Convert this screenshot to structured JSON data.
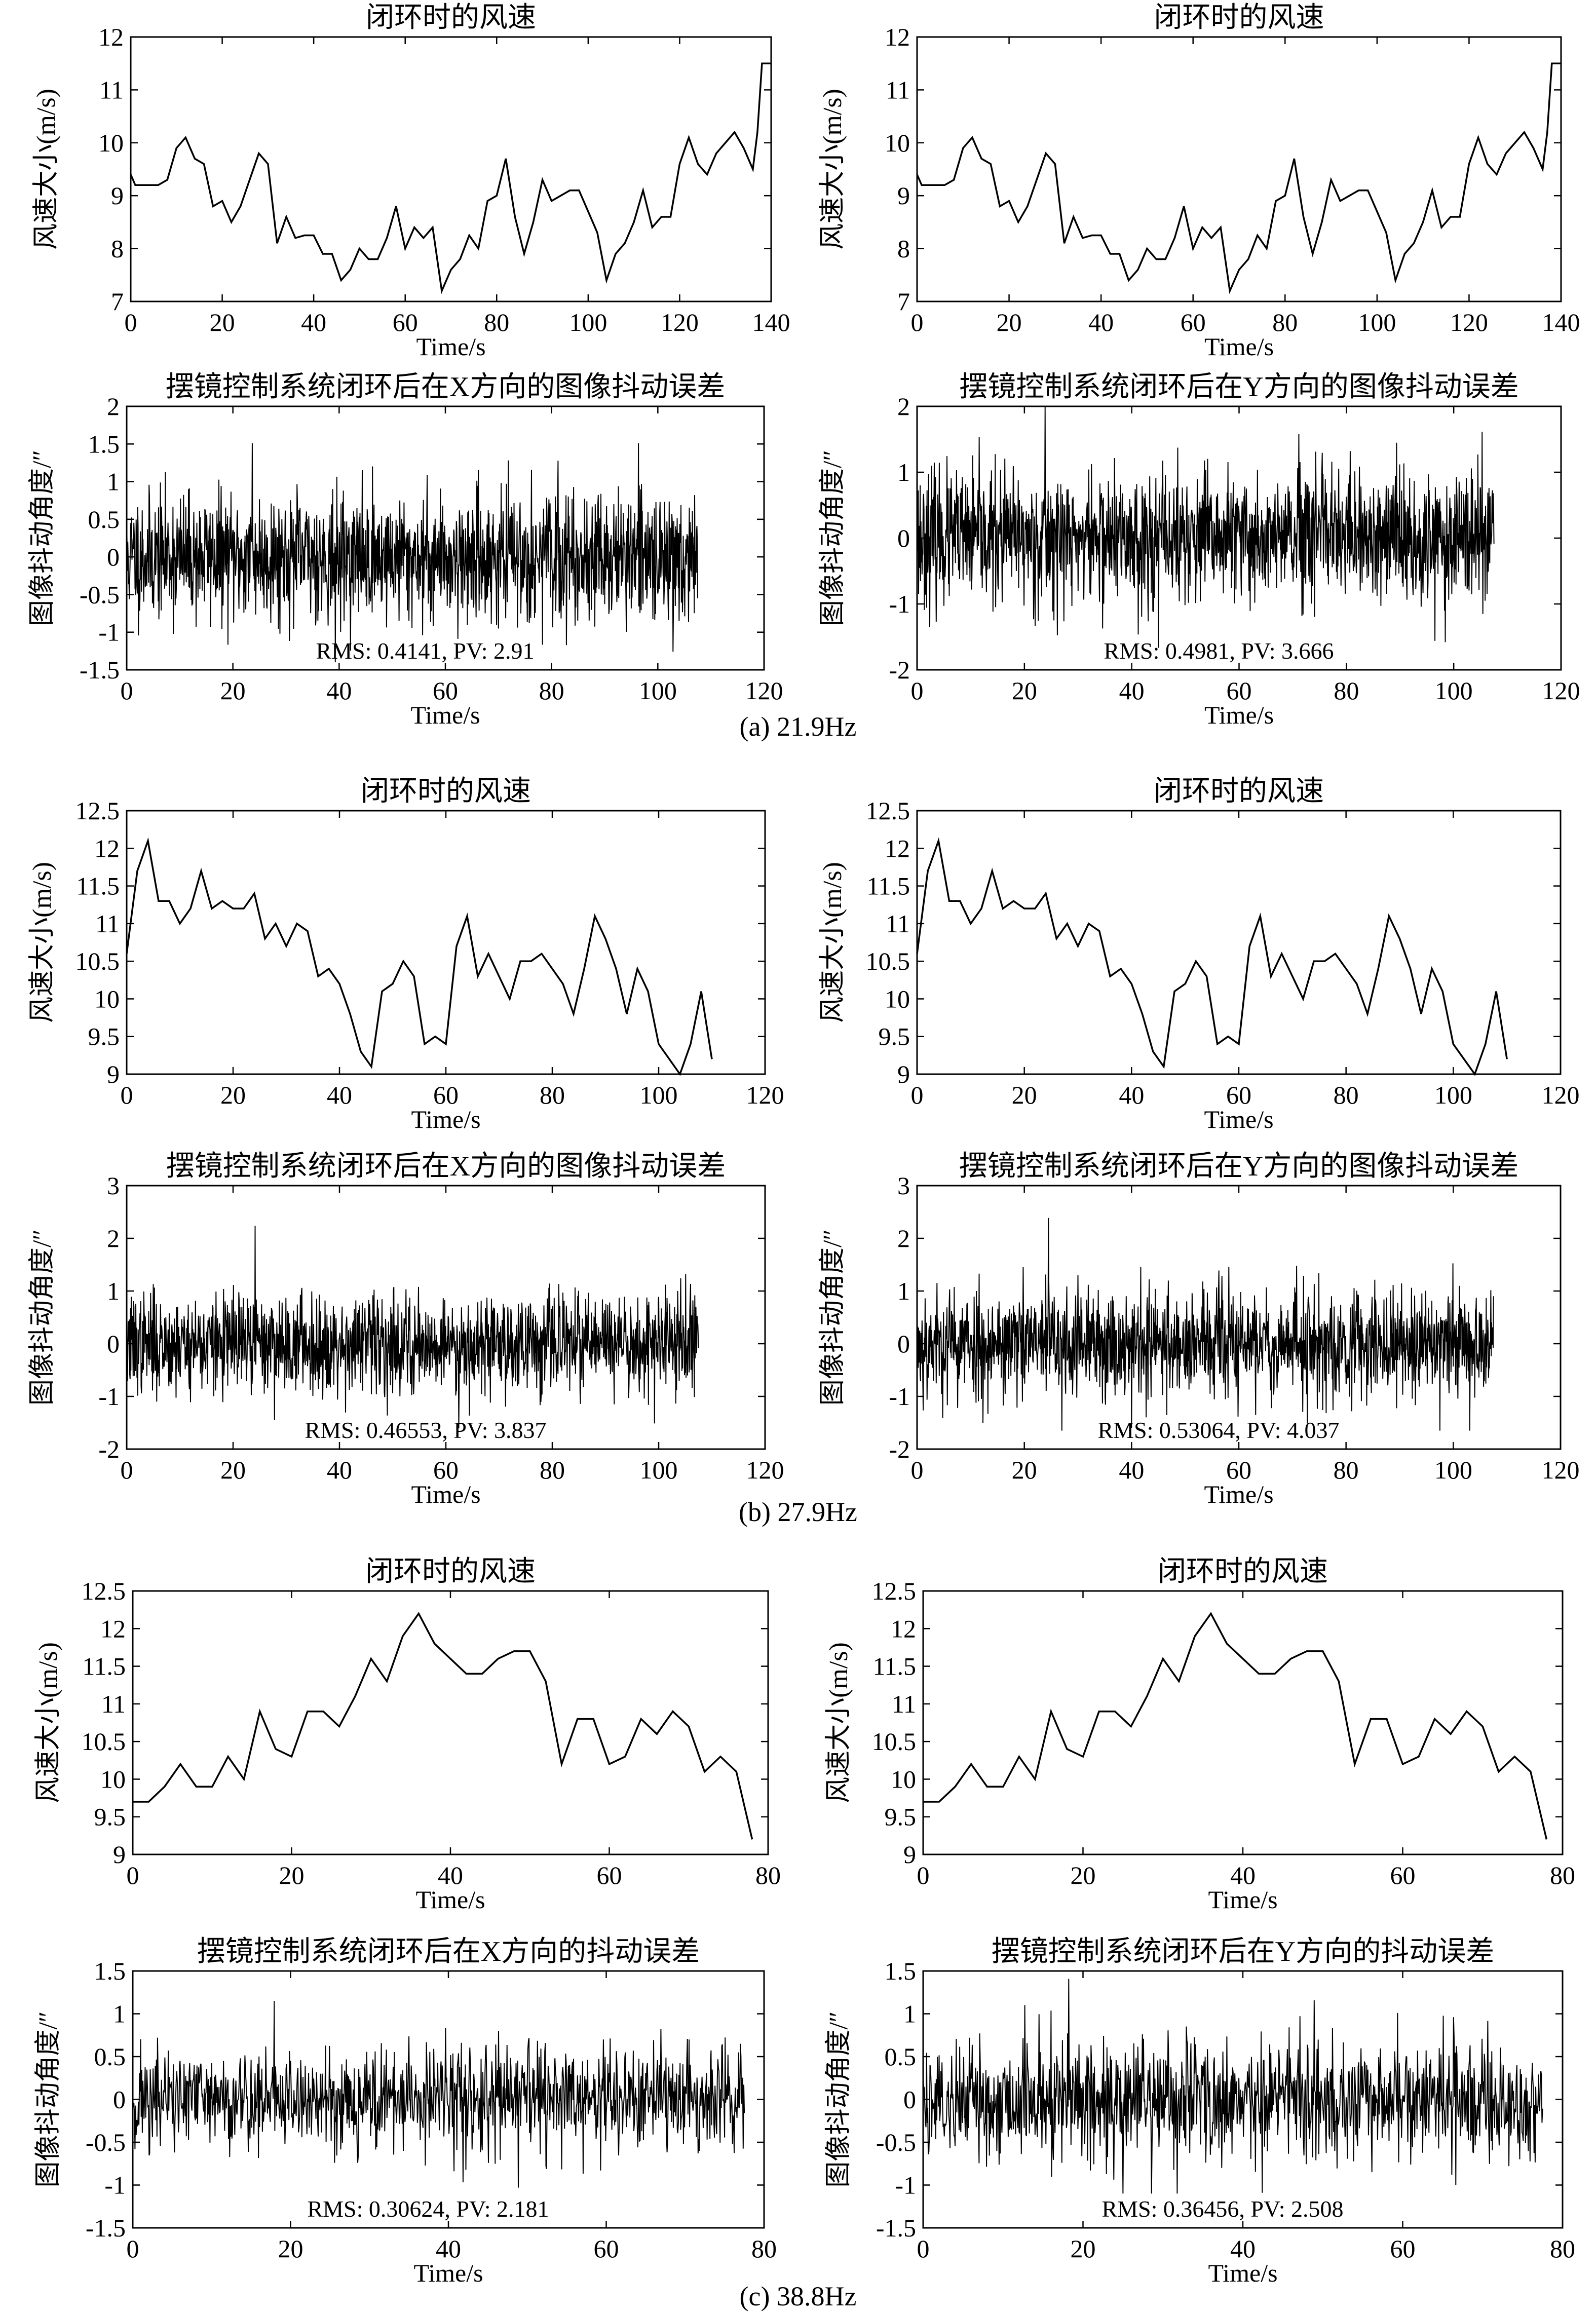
{
  "captions": [
    "(a) 21.9Hz",
    "(b) 27.9Hz",
    "(c) 38.8Hz"
  ],
  "chart_data": [
    {
      "id": "a-wind-left",
      "type": "line",
      "title": "闭环时的风速",
      "xlabel": "Time/s",
      "ylabel": "风速大小(m/s)",
      "xlim": [
        0,
        140
      ],
      "ylim": [
        7,
        12
      ],
      "xticks": [
        0,
        20,
        40,
        60,
        80,
        100,
        120,
        140
      ],
      "yticks": [
        7,
        8,
        9,
        10,
        11,
        12
      ],
      "x": [
        0,
        1,
        2,
        4,
        6,
        8,
        10,
        12,
        14,
        16,
        18,
        20,
        22,
        24,
        26,
        28,
        30,
        32,
        34,
        36,
        38,
        40,
        42,
        44,
        46,
        48,
        50,
        52,
        54,
        56,
        58,
        60,
        62,
        64,
        66,
        68,
        70,
        72,
        74,
        76,
        78,
        80,
        82,
        84,
        86,
        88,
        90,
        92,
        94,
        96,
        98,
        100,
        102,
        104,
        106,
        108,
        110,
        112,
        114,
        116,
        118,
        120,
        122,
        124,
        126,
        128,
        130,
        132,
        134,
        136,
        137,
        138,
        139,
        140
      ],
      "y": [
        9.4,
        9.2,
        9.2,
        9.2,
        9.2,
        9.3,
        9.9,
        10.1,
        9.7,
        9.6,
        8.8,
        8.9,
        8.5,
        8.8,
        9.3,
        9.8,
        9.6,
        8.1,
        8.6,
        8.2,
        8.25,
        8.25,
        7.9,
        7.9,
        7.4,
        7.6,
        8.0,
        7.8,
        7.8,
        8.2,
        8.8,
        8.0,
        8.4,
        8.2,
        8.4,
        7.2,
        7.6,
        7.8,
        8.25,
        8.0,
        8.9,
        9.0,
        9.7,
        8.6,
        7.9,
        8.5,
        9.3,
        8.9,
        9.0,
        9.1,
        9.1,
        8.7,
        8.3,
        7.4,
        7.9,
        8.1,
        8.5,
        9.1,
        8.4,
        8.6,
        8.6,
        9.6,
        10.1,
        9.6,
        9.4,
        9.8,
        10.0,
        10.2,
        9.9,
        9.5,
        10.2,
        11.5,
        11.5,
        11.5
      ]
    },
    {
      "id": "a-wind-right",
      "type": "line",
      "title": "闭环时的风速",
      "xlabel": "Time/s",
      "ylabel": "风速大小(m/s)",
      "xlim": [
        0,
        140
      ],
      "ylim": [
        7,
        12
      ],
      "xticks": [
        0,
        20,
        40,
        60,
        80,
        100,
        120,
        140
      ],
      "yticks": [
        7,
        8,
        9,
        10,
        11,
        12
      ],
      "x": [
        0,
        1,
        2,
        4,
        6,
        8,
        10,
        12,
        14,
        16,
        18,
        20,
        22,
        24,
        26,
        28,
        30,
        32,
        34,
        36,
        38,
        40,
        42,
        44,
        46,
        48,
        50,
        52,
        54,
        56,
        58,
        60,
        62,
        64,
        66,
        68,
        70,
        72,
        74,
        76,
        78,
        80,
        82,
        84,
        86,
        88,
        90,
        92,
        94,
        96,
        98,
        100,
        102,
        104,
        106,
        108,
        110,
        112,
        114,
        116,
        118,
        120,
        122,
        124,
        126,
        128,
        130,
        132,
        134,
        136,
        137,
        138,
        139,
        140
      ],
      "y": [
        9.4,
        9.2,
        9.2,
        9.2,
        9.2,
        9.3,
        9.9,
        10.1,
        9.7,
        9.6,
        8.8,
        8.9,
        8.5,
        8.8,
        9.3,
        9.8,
        9.6,
        8.1,
        8.6,
        8.2,
        8.25,
        8.25,
        7.9,
        7.9,
        7.4,
        7.6,
        8.0,
        7.8,
        7.8,
        8.2,
        8.8,
        8.0,
        8.4,
        8.2,
        8.4,
        7.2,
        7.6,
        7.8,
        8.25,
        8.0,
        8.9,
        9.0,
        9.7,
        8.6,
        7.9,
        8.5,
        9.3,
        8.9,
        9.0,
        9.1,
        9.1,
        8.7,
        8.3,
        7.4,
        7.9,
        8.1,
        8.5,
        9.1,
        8.4,
        8.6,
        8.6,
        9.6,
        10.1,
        9.6,
        9.4,
        9.8,
        10.0,
        10.2,
        9.9,
        9.5,
        10.2,
        11.5,
        11.5,
        11.5
      ]
    },
    {
      "id": "a-jitter-x",
      "type": "line",
      "title": "摆镜控制系统闭环后在X方向的图像抖动误差",
      "xlabel": "Time/s",
      "ylabel": "图像抖动角度/″",
      "xlim": [
        0,
        120
      ],
      "ylim": [
        -1.5,
        2
      ],
      "xticks": [
        0,
        20,
        40,
        60,
        80,
        100,
        120
      ],
      "yticks": [
        -1.5,
        -1,
        -0.5,
        0,
        0.5,
        1,
        1.5,
        2
      ],
      "duration": 107.5,
      "rms": 0.4141,
      "amplitude_range": [
        -1.4,
        1.51
      ],
      "seed": 11,
      "annotation": "RMS: 0.4141, PV: 2.91"
    },
    {
      "id": "a-jitter-y",
      "type": "line",
      "title": "摆镜控制系统闭环后在Y方向的图像抖动误差",
      "xlabel": "Time/s",
      "ylabel": "图像抖动角度/″",
      "xlim": [
        0,
        120
      ],
      "ylim": [
        -2,
        2
      ],
      "xticks": [
        0,
        20,
        40,
        60,
        80,
        100,
        120
      ],
      "yticks": [
        -2,
        -1,
        0,
        1,
        2
      ],
      "duration": 107.5,
      "rms": 0.4981,
      "amplitude_range": [
        -1.666,
        2.0
      ],
      "seed": 23,
      "annotation": "RMS: 0.4981, PV: 3.666"
    },
    {
      "id": "b-wind-left",
      "type": "line",
      "title": "闭环时的风速",
      "xlabel": "Time/s",
      "ylabel": "风速大小(m/s)",
      "xlim": [
        0,
        120
      ],
      "ylim": [
        9,
        12.5
      ],
      "xticks": [
        0,
        20,
        40,
        60,
        80,
        100,
        120
      ],
      "yticks": [
        9,
        9.5,
        10,
        10.5,
        11,
        11.5,
        12,
        12.5
      ],
      "x": [
        0,
        2,
        4,
        6,
        8,
        10,
        12,
        14,
        16,
        18,
        20,
        22,
        24,
        26,
        28,
        30,
        32,
        34,
        36,
        38,
        40,
        42,
        44,
        46,
        48,
        50,
        52,
        54,
        56,
        58,
        60,
        62,
        64,
        66,
        68,
        70,
        72,
        74,
        76,
        78,
        80,
        82,
        84,
        86,
        88,
        90,
        92,
        94,
        96,
        98,
        100,
        102,
        104,
        106,
        108,
        110
      ],
      "y": [
        10.6,
        11.7,
        12.1,
        11.3,
        11.3,
        11.0,
        11.2,
        11.7,
        11.2,
        11.3,
        11.2,
        11.2,
        11.4,
        10.8,
        11.0,
        10.7,
        11.0,
        10.9,
        10.3,
        10.4,
        10.2,
        9.8,
        9.3,
        9.1,
        10.1,
        10.2,
        10.5,
        10.3,
        9.4,
        9.5,
        9.4,
        10.7,
        11.1,
        10.3,
        10.6,
        10.3,
        10.0,
        10.5,
        10.5,
        10.6,
        10.4,
        10.2,
        9.8,
        10.4,
        11.1,
        10.8,
        10.4,
        9.8,
        10.4,
        10.1,
        9.4,
        9.2,
        9.0,
        9.4,
        10.1,
        9.2
      ]
    },
    {
      "id": "b-wind-right",
      "type": "line",
      "title": "闭环时的风速",
      "xlabel": "Time/s",
      "ylabel": "风速大小(m/s)",
      "xlim": [
        0,
        120
      ],
      "ylim": [
        9,
        12.5
      ],
      "xticks": [
        0,
        20,
        40,
        60,
        80,
        100,
        120
      ],
      "yticks": [
        9,
        9.5,
        10,
        10.5,
        11,
        11.5,
        12,
        12.5
      ],
      "x": [
        0,
        2,
        4,
        6,
        8,
        10,
        12,
        14,
        16,
        18,
        20,
        22,
        24,
        26,
        28,
        30,
        32,
        34,
        36,
        38,
        40,
        42,
        44,
        46,
        48,
        50,
        52,
        54,
        56,
        58,
        60,
        62,
        64,
        66,
        68,
        70,
        72,
        74,
        76,
        78,
        80,
        82,
        84,
        86,
        88,
        90,
        92,
        94,
        96,
        98,
        100,
        102,
        104,
        106,
        108,
        110
      ],
      "y": [
        10.6,
        11.7,
        12.1,
        11.3,
        11.3,
        11.0,
        11.2,
        11.7,
        11.2,
        11.3,
        11.2,
        11.2,
        11.4,
        10.8,
        11.0,
        10.7,
        11.0,
        10.9,
        10.3,
        10.4,
        10.2,
        9.8,
        9.3,
        9.1,
        10.1,
        10.2,
        10.5,
        10.3,
        9.4,
        9.5,
        9.4,
        10.7,
        11.1,
        10.3,
        10.6,
        10.3,
        10.0,
        10.5,
        10.5,
        10.6,
        10.4,
        10.2,
        9.8,
        10.4,
        11.1,
        10.8,
        10.4,
        9.8,
        10.4,
        10.1,
        9.4,
        9.2,
        9.0,
        9.4,
        10.1,
        9.2
      ]
    },
    {
      "id": "b-jitter-x",
      "type": "line",
      "title": "摆镜控制系统闭环后在X方向的图像抖动误差",
      "xlabel": "Time/s",
      "ylabel": "图像抖动角度/″",
      "xlim": [
        0,
        120
      ],
      "ylim": [
        -2,
        3
      ],
      "xticks": [
        0,
        20,
        40,
        60,
        80,
        100,
        120
      ],
      "yticks": [
        -2,
        -1,
        0,
        1,
        2,
        3
      ],
      "duration": 107.5,
      "rms": 0.46553,
      "amplitude_range": [
        -1.6,
        2.237
      ],
      "seed": 37,
      "annotation": "RMS: 0.46553, PV: 3.837"
    },
    {
      "id": "b-jitter-y",
      "type": "line",
      "title": "摆镜控制系统闭环后在Y方向的图像抖动误差",
      "xlabel": "Time/s",
      "ylabel": "图像抖动角度/″",
      "xlim": [
        0,
        120
      ],
      "ylim": [
        -2,
        3
      ],
      "xticks": [
        0,
        20,
        40,
        60,
        80,
        100,
        120
      ],
      "yticks": [
        -2,
        -1,
        0,
        1,
        2,
        3
      ],
      "duration": 107.5,
      "rms": 0.53064,
      "amplitude_range": [
        -1.65,
        2.387
      ],
      "seed": 53,
      "annotation": "RMS: 0.53064, PV: 4.037"
    },
    {
      "id": "c-wind-left",
      "type": "line",
      "title": "闭环时的风速",
      "xlabel": "Time/s",
      "ylabel": "风速大小(m/s)",
      "xlim": [
        0,
        80
      ],
      "ylim": [
        9,
        12.5
      ],
      "xticks": [
        0,
        20,
        40,
        60,
        80
      ],
      "yticks": [
        9,
        9.5,
        10,
        10.5,
        11,
        11.5,
        12,
        12.5
      ],
      "x": [
        0,
        2,
        4,
        6,
        8,
        10,
        12,
        14,
        16,
        18,
        20,
        22,
        24,
        26,
        28,
        30,
        32,
        34,
        36,
        38,
        40,
        42,
        44,
        46,
        48,
        50,
        52,
        54,
        56,
        58,
        60,
        62,
        64,
        66,
        68,
        70,
        72,
        74,
        76,
        78
      ],
      "y": [
        9.7,
        9.7,
        9.9,
        10.2,
        9.9,
        9.9,
        10.3,
        10.0,
        10.9,
        10.4,
        10.3,
        10.9,
        10.9,
        10.7,
        11.1,
        11.6,
        11.3,
        11.9,
        12.2,
        11.8,
        11.6,
        11.4,
        11.4,
        11.6,
        11.7,
        11.7,
        11.3,
        10.2,
        10.8,
        10.8,
        10.2,
        10.3,
        10.8,
        10.6,
        10.9,
        10.7,
        10.1,
        10.3,
        10.1,
        9.2
      ]
    },
    {
      "id": "c-wind-right",
      "type": "line",
      "title": "闭环时的风速",
      "xlabel": "Time/s",
      "ylabel": "风速大小(m/s)",
      "xlim": [
        0,
        80
      ],
      "ylim": [
        9,
        12.5
      ],
      "xticks": [
        0,
        20,
        40,
        60,
        80
      ],
      "yticks": [
        9,
        9.5,
        10,
        10.5,
        11,
        11.5,
        12,
        12.5
      ],
      "x": [
        0,
        2,
        4,
        6,
        8,
        10,
        12,
        14,
        16,
        18,
        20,
        22,
        24,
        26,
        28,
        30,
        32,
        34,
        36,
        38,
        40,
        42,
        44,
        46,
        48,
        50,
        52,
        54,
        56,
        58,
        60,
        62,
        64,
        66,
        68,
        70,
        72,
        74,
        76,
        78
      ],
      "y": [
        9.7,
        9.7,
        9.9,
        10.2,
        9.9,
        9.9,
        10.3,
        10.0,
        10.9,
        10.4,
        10.3,
        10.9,
        10.9,
        10.7,
        11.1,
        11.6,
        11.3,
        11.9,
        12.2,
        11.8,
        11.6,
        11.4,
        11.4,
        11.6,
        11.7,
        11.7,
        11.3,
        10.2,
        10.8,
        10.8,
        10.2,
        10.3,
        10.8,
        10.6,
        10.9,
        10.7,
        10.1,
        10.3,
        10.1,
        9.2
      ]
    },
    {
      "id": "c-jitter-x",
      "type": "line",
      "title": "摆镜控制系统闭环后在X方向的抖动误差",
      "xlabel": "Time/s",
      "ylabel": "图像抖动角度/″",
      "xlim": [
        0,
        80
      ],
      "ylim": [
        -1.5,
        1.5
      ],
      "xticks": [
        0,
        20,
        40,
        60,
        80
      ],
      "yticks": [
        -1.5,
        -1,
        -0.5,
        0,
        0.5,
        1,
        1.5
      ],
      "duration": 77.5,
      "rms": 0.30624,
      "amplitude_range": [
        -1.03,
        1.151
      ],
      "seed": 71,
      "annotation": "RMS: 0.30624, PV: 2.181"
    },
    {
      "id": "c-jitter-y",
      "type": "line",
      "title": "摆镜控制系统闭环后在Y方向的抖动误差",
      "xlabel": "Time/s",
      "ylabel": "图像抖动角度/″",
      "xlim": [
        0,
        80
      ],
      "ylim": [
        -1.5,
        1.5
      ],
      "xticks": [
        0,
        20,
        40,
        60,
        80
      ],
      "yticks": [
        -1.5,
        -1,
        -0.5,
        0,
        0.5,
        1,
        1.5
      ],
      "duration": 77.5,
      "rms": 0.36456,
      "amplitude_range": [
        -1.1,
        1.408
      ],
      "seed": 89,
      "annotation": "RMS: 0.36456, PV: 2.508"
    }
  ]
}
